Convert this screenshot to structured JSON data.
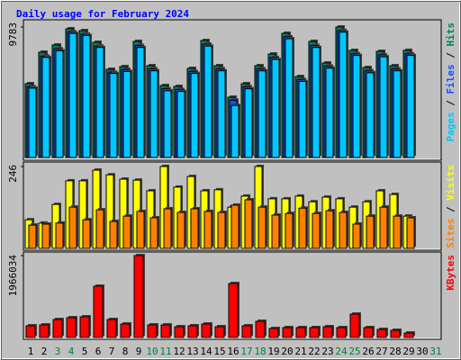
{
  "chart_data": [
    {
      "type": "bar",
      "title": "Daily usage for February 2024",
      "ylim": [
        0,
        9783
      ],
      "yticks": [
        9783
      ],
      "legend_separator": " / ",
      "series": [
        {
          "name": "Hits",
          "color": "#00805c",
          "values": [
            5533,
            7894,
            8434,
            9650,
            9513,
            8636,
            6612,
            6814,
            8704,
            6882,
            5398,
            5330,
            6680,
            8771,
            6882,
            4520,
            5533,
            6882,
            7759,
            9311,
            6072,
            8704,
            7084,
            9783,
            8029,
            6747,
            7961,
            6882,
            8029,
            null,
            null
          ]
        },
        {
          "name": "Files",
          "color": "#1a4dff",
          "values": [
            5300,
            7600,
            8150,
            9420,
            9250,
            8350,
            6400,
            6600,
            8400,
            6650,
            5150,
            5100,
            6450,
            8500,
            6650,
            4300,
            5300,
            6650,
            7500,
            9050,
            5850,
            8400,
            6850,
            9520,
            7780,
            6500,
            7700,
            6650,
            7780,
            null,
            null
          ]
        },
        {
          "name": "Pages",
          "color": "#00c8ff",
          "values": [
            5200,
            7500,
            8000,
            9300,
            9150,
            8250,
            6300,
            6450,
            8250,
            6500,
            5000,
            4950,
            6300,
            8350,
            6500,
            3900,
            5150,
            6500,
            7350,
            8900,
            5700,
            8250,
            6700,
            9400,
            7650,
            6350,
            7550,
            6500,
            7650,
            null,
            null
          ]
        }
      ]
    },
    {
      "type": "bar",
      "ylim": [
        0,
        246
      ],
      "yticks": [
        246
      ],
      "legend_separator": " / ",
      "series": [
        {
          "name": "Visits",
          "color": "#ffff00",
          "values": [
            86,
            76,
            132,
            203,
            203,
            235,
            221,
            208,
            205,
            173,
            246,
            184,
            216,
            173,
            176,
            124,
            157,
            246,
            149,
            149,
            157,
            140,
            154,
            149,
            124,
            140,
            173,
            162,
            97,
            null,
            null
          ]
        },
        {
          "name": "Sites",
          "color": "#ff8000",
          "values": [
            70,
            73,
            76,
            124,
            86,
            116,
            81,
            97,
            111,
            92,
            119,
            108,
            119,
            111,
            108,
            130,
            146,
            124,
            100,
            105,
            121,
            105,
            113,
            108,
            73,
            97,
            124,
            97,
            92,
            null,
            null
          ]
        }
      ]
    },
    {
      "type": "bar",
      "ylim": [
        0,
        1966034
      ],
      "yticks": [
        1966034
      ],
      "categories": [
        "1",
        "2",
        "3",
        "4",
        "5",
        "6",
        "7",
        "8",
        "9",
        "10",
        "11",
        "12",
        "13",
        "14",
        "15",
        "16",
        "17",
        "18",
        "19",
        "20",
        "21",
        "22",
        "23",
        "24",
        "25",
        "26",
        "27",
        "28",
        "29",
        "30",
        "31"
      ],
      "category_colors": [
        "#000000",
        "#000000",
        "#008040",
        "#008040",
        "#000000",
        "#000000",
        "#000000",
        "#000000",
        "#000000",
        "#008040",
        "#008040",
        "#000000",
        "#000000",
        "#000000",
        "#000000",
        "#000000",
        "#008040",
        "#008040",
        "#000000",
        "#000000",
        "#000000",
        "#000000",
        "#000000",
        "#008040",
        "#008040",
        "#000000",
        "#000000",
        "#000000",
        "#000000",
        "#000000",
        "#008040"
      ],
      "series": [
        {
          "name": "KBytes",
          "color": "#ff0000",
          "values": [
            281000,
            302000,
            432000,
            475000,
            497000,
            1231000,
            432000,
            324000,
            1966034,
            302000,
            302000,
            259000,
            281000,
            324000,
            259000,
            1296000,
            281000,
            389000,
            216000,
            238000,
            238000,
            238000,
            259000,
            238000,
            562000,
            238000,
            194000,
            173000,
            108000,
            null,
            null
          ]
        }
      ]
    }
  ]
}
